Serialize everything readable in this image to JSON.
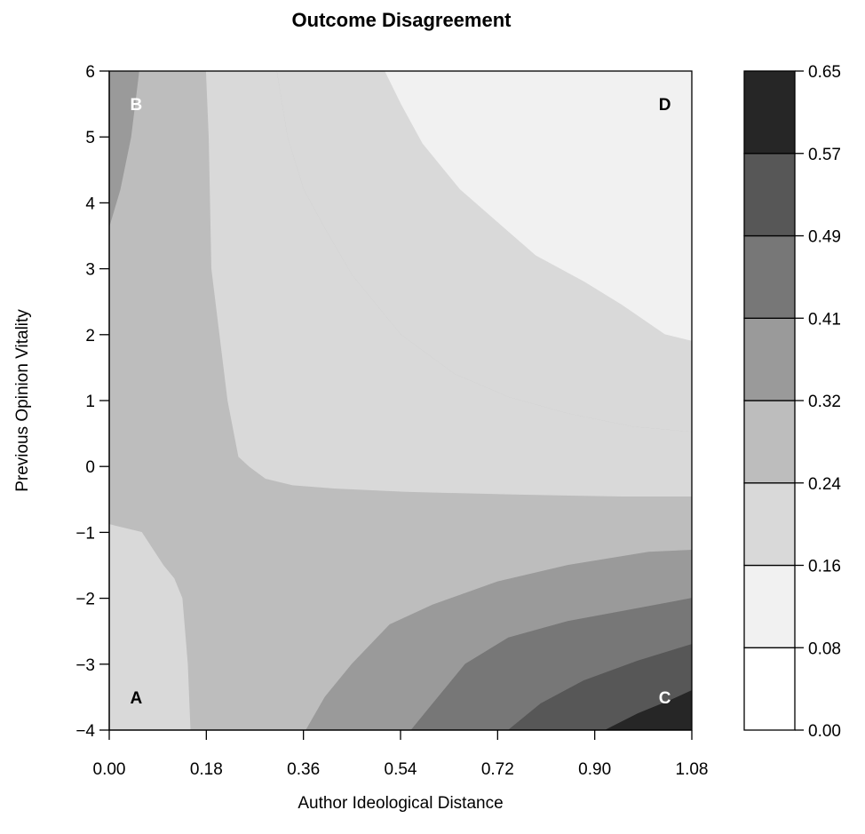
{
  "chart_data": {
    "type": "contour",
    "title": "Outcome Disagreement",
    "xlabel": "Author Ideological Distance",
    "ylabel": "Previous Opinion Vitality",
    "xlim": [
      0,
      1.08
    ],
    "ylim": [
      -4,
      6
    ],
    "x_ticks": [
      "0.00",
      "0.18",
      "0.36",
      "0.54",
      "0.72",
      "0.90",
      "1.08"
    ],
    "y_ticks": [
      "−4",
      "−3",
      "−2",
      "−1",
      "0",
      "1",
      "2",
      "3",
      "4",
      "5",
      "6"
    ],
    "levels": [
      0.0,
      0.08,
      0.16,
      0.24,
      0.32,
      0.41,
      0.49,
      0.57,
      0.65
    ],
    "legend_labels": [
      "0.00",
      "0.08",
      "0.16",
      "0.24",
      "0.32",
      "0.41",
      "0.49",
      "0.57",
      "0.65"
    ],
    "band_colors": [
      "#ffffff",
      "#f1f1f1",
      "#d9d9d9",
      "#bdbdbd",
      "#9a9a9a",
      "#777777",
      "#575757",
      "#262626"
    ],
    "corner_labels": [
      {
        "text": "A",
        "x": 0.05,
        "y": -3.5,
        "color": "#000000"
      },
      {
        "text": "B",
        "x": 0.05,
        "y": 5.5,
        "color": "#ffffff"
      },
      {
        "text": "C",
        "x": 1.03,
        "y": -3.5,
        "color": "#ffffff"
      },
      {
        "text": "D",
        "x": 1.03,
        "y": 5.5,
        "color": "#000000"
      }
    ],
    "regions": [
      {
        "level": 1,
        "points": [
          [
            0.51,
            6
          ],
          [
            1.08,
            6
          ],
          [
            1.08,
            1.9
          ],
          [
            1.03,
            2.0
          ],
          [
            0.95,
            2.45
          ],
          [
            0.88,
            2.8
          ],
          [
            0.79,
            3.2
          ],
          [
            0.72,
            3.7
          ],
          [
            0.65,
            4.2
          ],
          [
            0.58,
            4.9
          ],
          [
            0.54,
            5.5
          ]
        ]
      },
      {
        "level": 2,
        "points": [
          [
            0.31,
            6
          ],
          [
            0.51,
            6
          ],
          [
            0.54,
            5.5
          ],
          [
            0.58,
            4.9
          ],
          [
            0.65,
            4.2
          ],
          [
            0.72,
            3.7
          ],
          [
            0.79,
            3.2
          ],
          [
            0.88,
            2.8
          ],
          [
            0.95,
            2.45
          ],
          [
            1.03,
            2.0
          ],
          [
            1.08,
            1.9
          ],
          [
            1.08,
            0.52
          ],
          [
            0.97,
            0.6
          ],
          [
            0.85,
            0.8
          ],
          [
            0.74,
            1.05
          ],
          [
            0.64,
            1.4
          ],
          [
            0.54,
            2.0
          ],
          [
            0.45,
            2.9
          ],
          [
            0.4,
            3.6
          ],
          [
            0.36,
            4.2
          ],
          [
            0.33,
            5.0
          ]
        ]
      },
      {
        "level": 3,
        "points": [
          [
            0.0,
            6
          ],
          [
            0.31,
            6
          ],
          [
            0.33,
            5.0
          ],
          [
            0.36,
            4.2
          ],
          [
            0.4,
            3.6
          ],
          [
            0.45,
            2.9
          ],
          [
            0.54,
            2.0
          ],
          [
            0.64,
            1.4
          ],
          [
            0.74,
            1.05
          ],
          [
            0.85,
            0.8
          ],
          [
            0.97,
            0.6
          ],
          [
            1.08,
            0.52
          ],
          [
            1.08,
            -1.27
          ],
          [
            1.0,
            -1.3
          ],
          [
            0.85,
            -1.5
          ],
          [
            0.72,
            -1.75
          ],
          [
            0.6,
            -2.1
          ],
          [
            0.52,
            -2.4
          ],
          [
            0.45,
            -3.0
          ],
          [
            0.4,
            -3.5
          ],
          [
            0.365,
            -4
          ],
          [
            0.15,
            -4
          ],
          [
            0.145,
            -3.0
          ],
          [
            0.135,
            -2.0
          ],
          [
            0.12,
            -1.7
          ],
          [
            0.1,
            -1.5
          ],
          [
            0.06,
            -1.0
          ],
          [
            0.0,
            -0.88
          ],
          [
            0.0,
            3.65
          ],
          [
            0.02,
            4.2
          ],
          [
            0.04,
            5.0
          ],
          [
            0.055,
            6
          ]
        ]
      },
      {
        "level": 2,
        "points": [
          [
            0.18,
            6
          ],
          [
            0.31,
            6
          ],
          [
            0.33,
            5.0
          ],
          [
            0.36,
            4.2
          ],
          [
            0.4,
            3.6
          ],
          [
            0.45,
            2.9
          ],
          [
            0.54,
            2.0
          ],
          [
            0.64,
            1.4
          ],
          [
            0.74,
            1.05
          ],
          [
            0.85,
            0.8
          ],
          [
            0.97,
            0.6
          ],
          [
            1.08,
            0.52
          ],
          [
            1.08,
            -0.45
          ],
          [
            0.95,
            -0.45
          ],
          [
            0.75,
            -0.42
          ],
          [
            0.55,
            -0.38
          ],
          [
            0.42,
            -0.33
          ],
          [
            0.34,
            -0.28
          ],
          [
            0.29,
            -0.18
          ],
          [
            0.26,
            0.0
          ],
          [
            0.24,
            0.15
          ],
          [
            0.22,
            1.0
          ],
          [
            0.19,
            3.0
          ],
          [
            0.185,
            5.0
          ]
        ]
      },
      {
        "level": 4,
        "points": [
          [
            0.0,
            3.65
          ],
          [
            0.02,
            4.2
          ],
          [
            0.04,
            5.0
          ],
          [
            0.055,
            6
          ],
          [
            0.0,
            6
          ]
        ]
      },
      {
        "level": 2,
        "points": [
          [
            0.0,
            -0.88
          ],
          [
            0.06,
            -1.0
          ],
          [
            0.1,
            -1.5
          ],
          [
            0.12,
            -1.7
          ],
          [
            0.135,
            -2.0
          ],
          [
            0.145,
            -3.0
          ],
          [
            0.15,
            -4
          ],
          [
            0.0,
            -4
          ]
        ]
      },
      {
        "level": 4,
        "points": [
          [
            0.365,
            -4
          ],
          [
            0.4,
            -3.5
          ],
          [
            0.45,
            -3.0
          ],
          [
            0.52,
            -2.4
          ],
          [
            0.6,
            -2.1
          ],
          [
            0.72,
            -1.75
          ],
          [
            0.85,
            -1.5
          ],
          [
            1.0,
            -1.3
          ],
          [
            1.08,
            -1.27
          ],
          [
            1.08,
            -4
          ]
        ]
      },
      {
        "level": 5,
        "points": [
          [
            0.56,
            -4
          ],
          [
            0.6,
            -3.6
          ],
          [
            0.66,
            -3.0
          ],
          [
            0.74,
            -2.6
          ],
          [
            0.85,
            -2.35
          ],
          [
            0.95,
            -2.2
          ],
          [
            1.08,
            -2.0
          ],
          [
            1.08,
            -4
          ]
        ]
      },
      {
        "level": 6,
        "points": [
          [
            0.74,
            -4
          ],
          [
            0.8,
            -3.6
          ],
          [
            0.88,
            -3.25
          ],
          [
            0.98,
            -2.95
          ],
          [
            1.08,
            -2.7
          ],
          [
            1.08,
            -4
          ]
        ]
      },
      {
        "level": 7,
        "points": [
          [
            0.92,
            -4
          ],
          [
            0.98,
            -3.75
          ],
          [
            1.04,
            -3.55
          ],
          [
            1.08,
            -3.4
          ],
          [
            1.08,
            -4
          ]
        ]
      }
    ]
  }
}
